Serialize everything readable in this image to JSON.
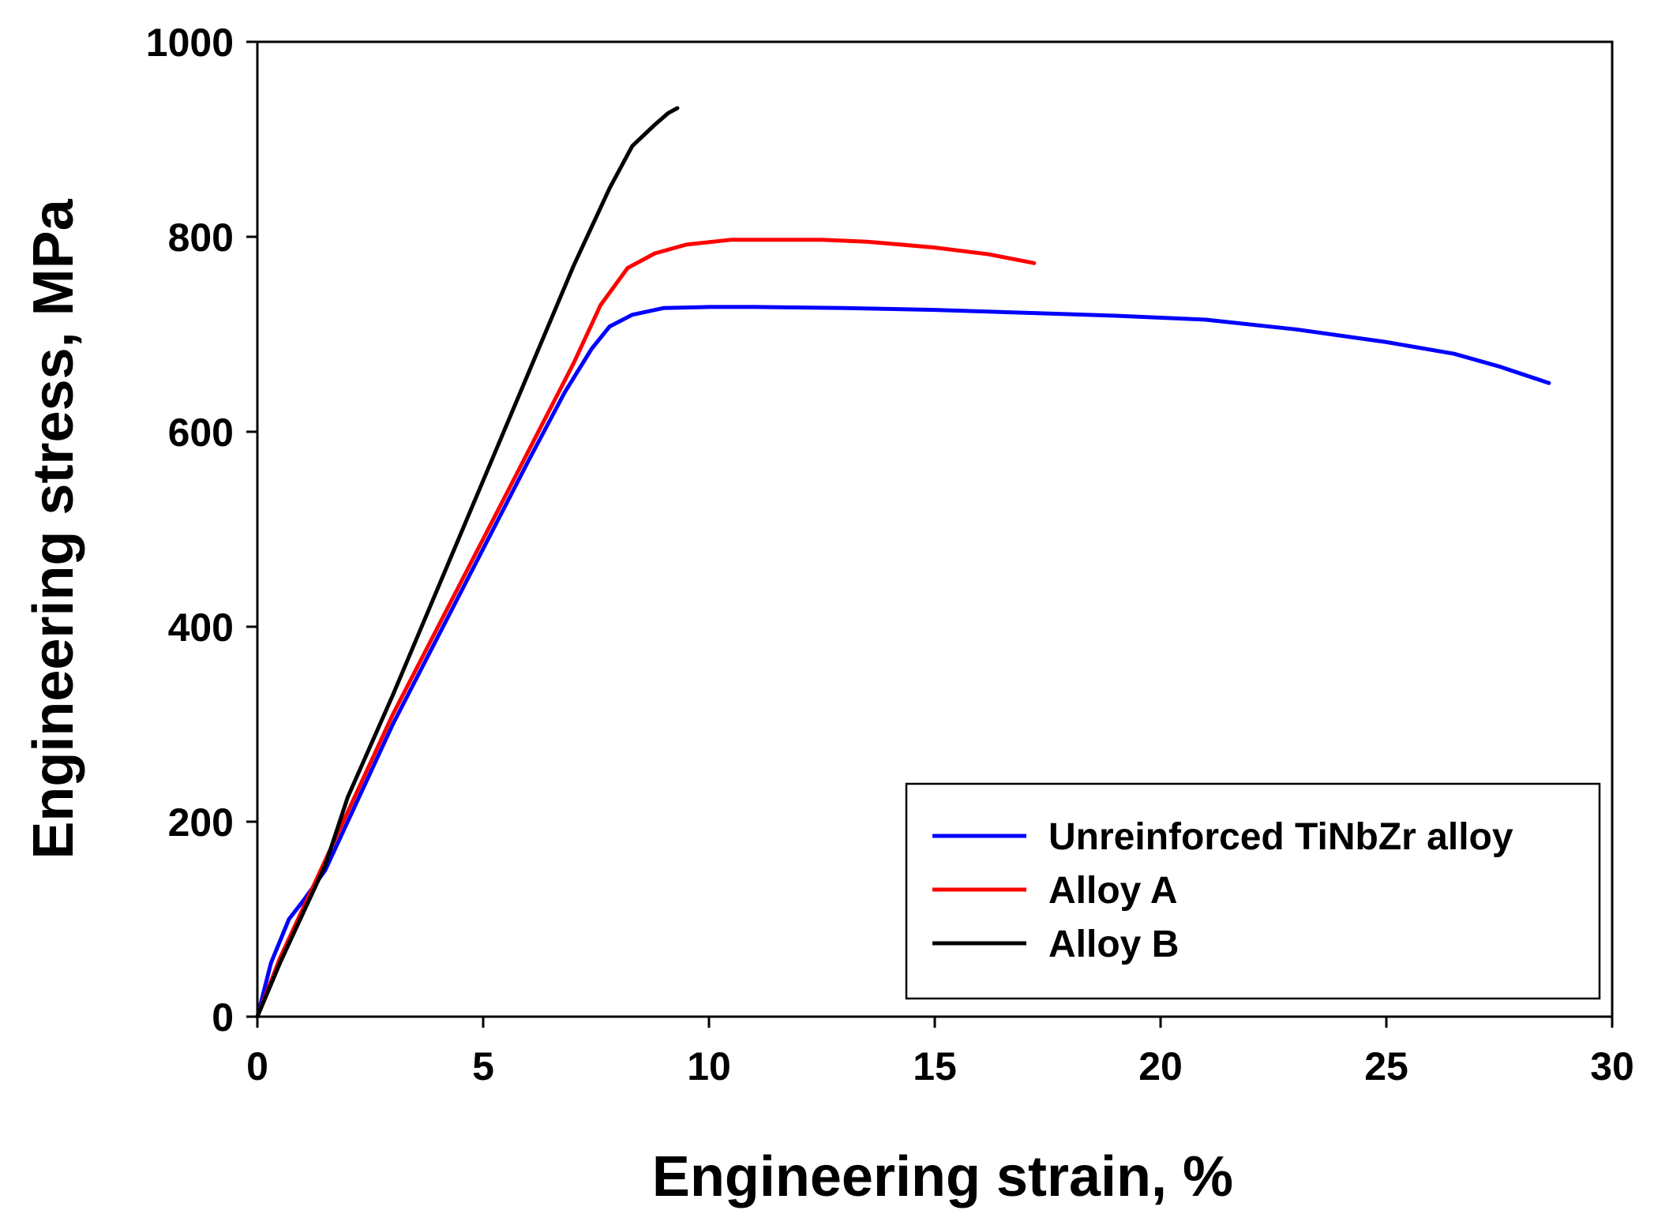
{
  "chart_data": {
    "type": "line",
    "title": "",
    "xlabel": "Engineering strain, %",
    "ylabel": "Engineering stress, MPa",
    "xlim": [
      0,
      30
    ],
    "ylim": [
      0,
      1000
    ],
    "xticks": [
      0,
      5,
      10,
      15,
      20,
      25,
      30
    ],
    "yticks": [
      0,
      200,
      400,
      600,
      800,
      1000
    ],
    "grid": false,
    "legend_position": "bottom-right",
    "series": [
      {
        "name": "Unreinforced TiNbZr alloy",
        "color": "#0000ff",
        "x": [
          0,
          0.3,
          0.7,
          1.0,
          1.5,
          2.0,
          3.0,
          4.0,
          5.0,
          6.0,
          6.8,
          7.4,
          7.8,
          8.3,
          9.0,
          10.0,
          11.0,
          13.0,
          15.0,
          17.0,
          19.0,
          21.0,
          23.0,
          25.0,
          26.5,
          27.5,
          28.6
        ],
        "y": [
          0,
          55,
          100,
          118,
          150,
          200,
          300,
          390,
          480,
          570,
          640,
          685,
          708,
          720,
          727,
          728,
          728,
          727,
          725,
          722,
          719,
          715,
          705,
          692,
          680,
          667,
          650
        ]
      },
      {
        "name": "Alloy A",
        "color": "#ff0000",
        "x": [
          0,
          0.5,
          1.0,
          1.5,
          2.0,
          3.0,
          4.0,
          5.0,
          6.0,
          7.0,
          7.6,
          8.2,
          8.8,
          9.5,
          10.5,
          11.5,
          12.5,
          13.5,
          15.0,
          16.2,
          17.2
        ],
        "y": [
          0,
          60,
          110,
          160,
          210,
          310,
          400,
          490,
          580,
          670,
          730,
          768,
          783,
          792,
          797,
          797,
          797,
          795,
          789,
          782,
          773
        ]
      },
      {
        "name": "Alloy B",
        "color": "#000000",
        "x": [
          0,
          0.5,
          1.0,
          1.5,
          2.0,
          3.0,
          4.0,
          5.0,
          6.0,
          7.0,
          7.8,
          8.3,
          8.8,
          9.1,
          9.3
        ],
        "y": [
          0,
          55,
          105,
          155,
          225,
          330,
          440,
          550,
          660,
          770,
          850,
          893,
          915,
          927,
          932
        ]
      }
    ]
  }
}
